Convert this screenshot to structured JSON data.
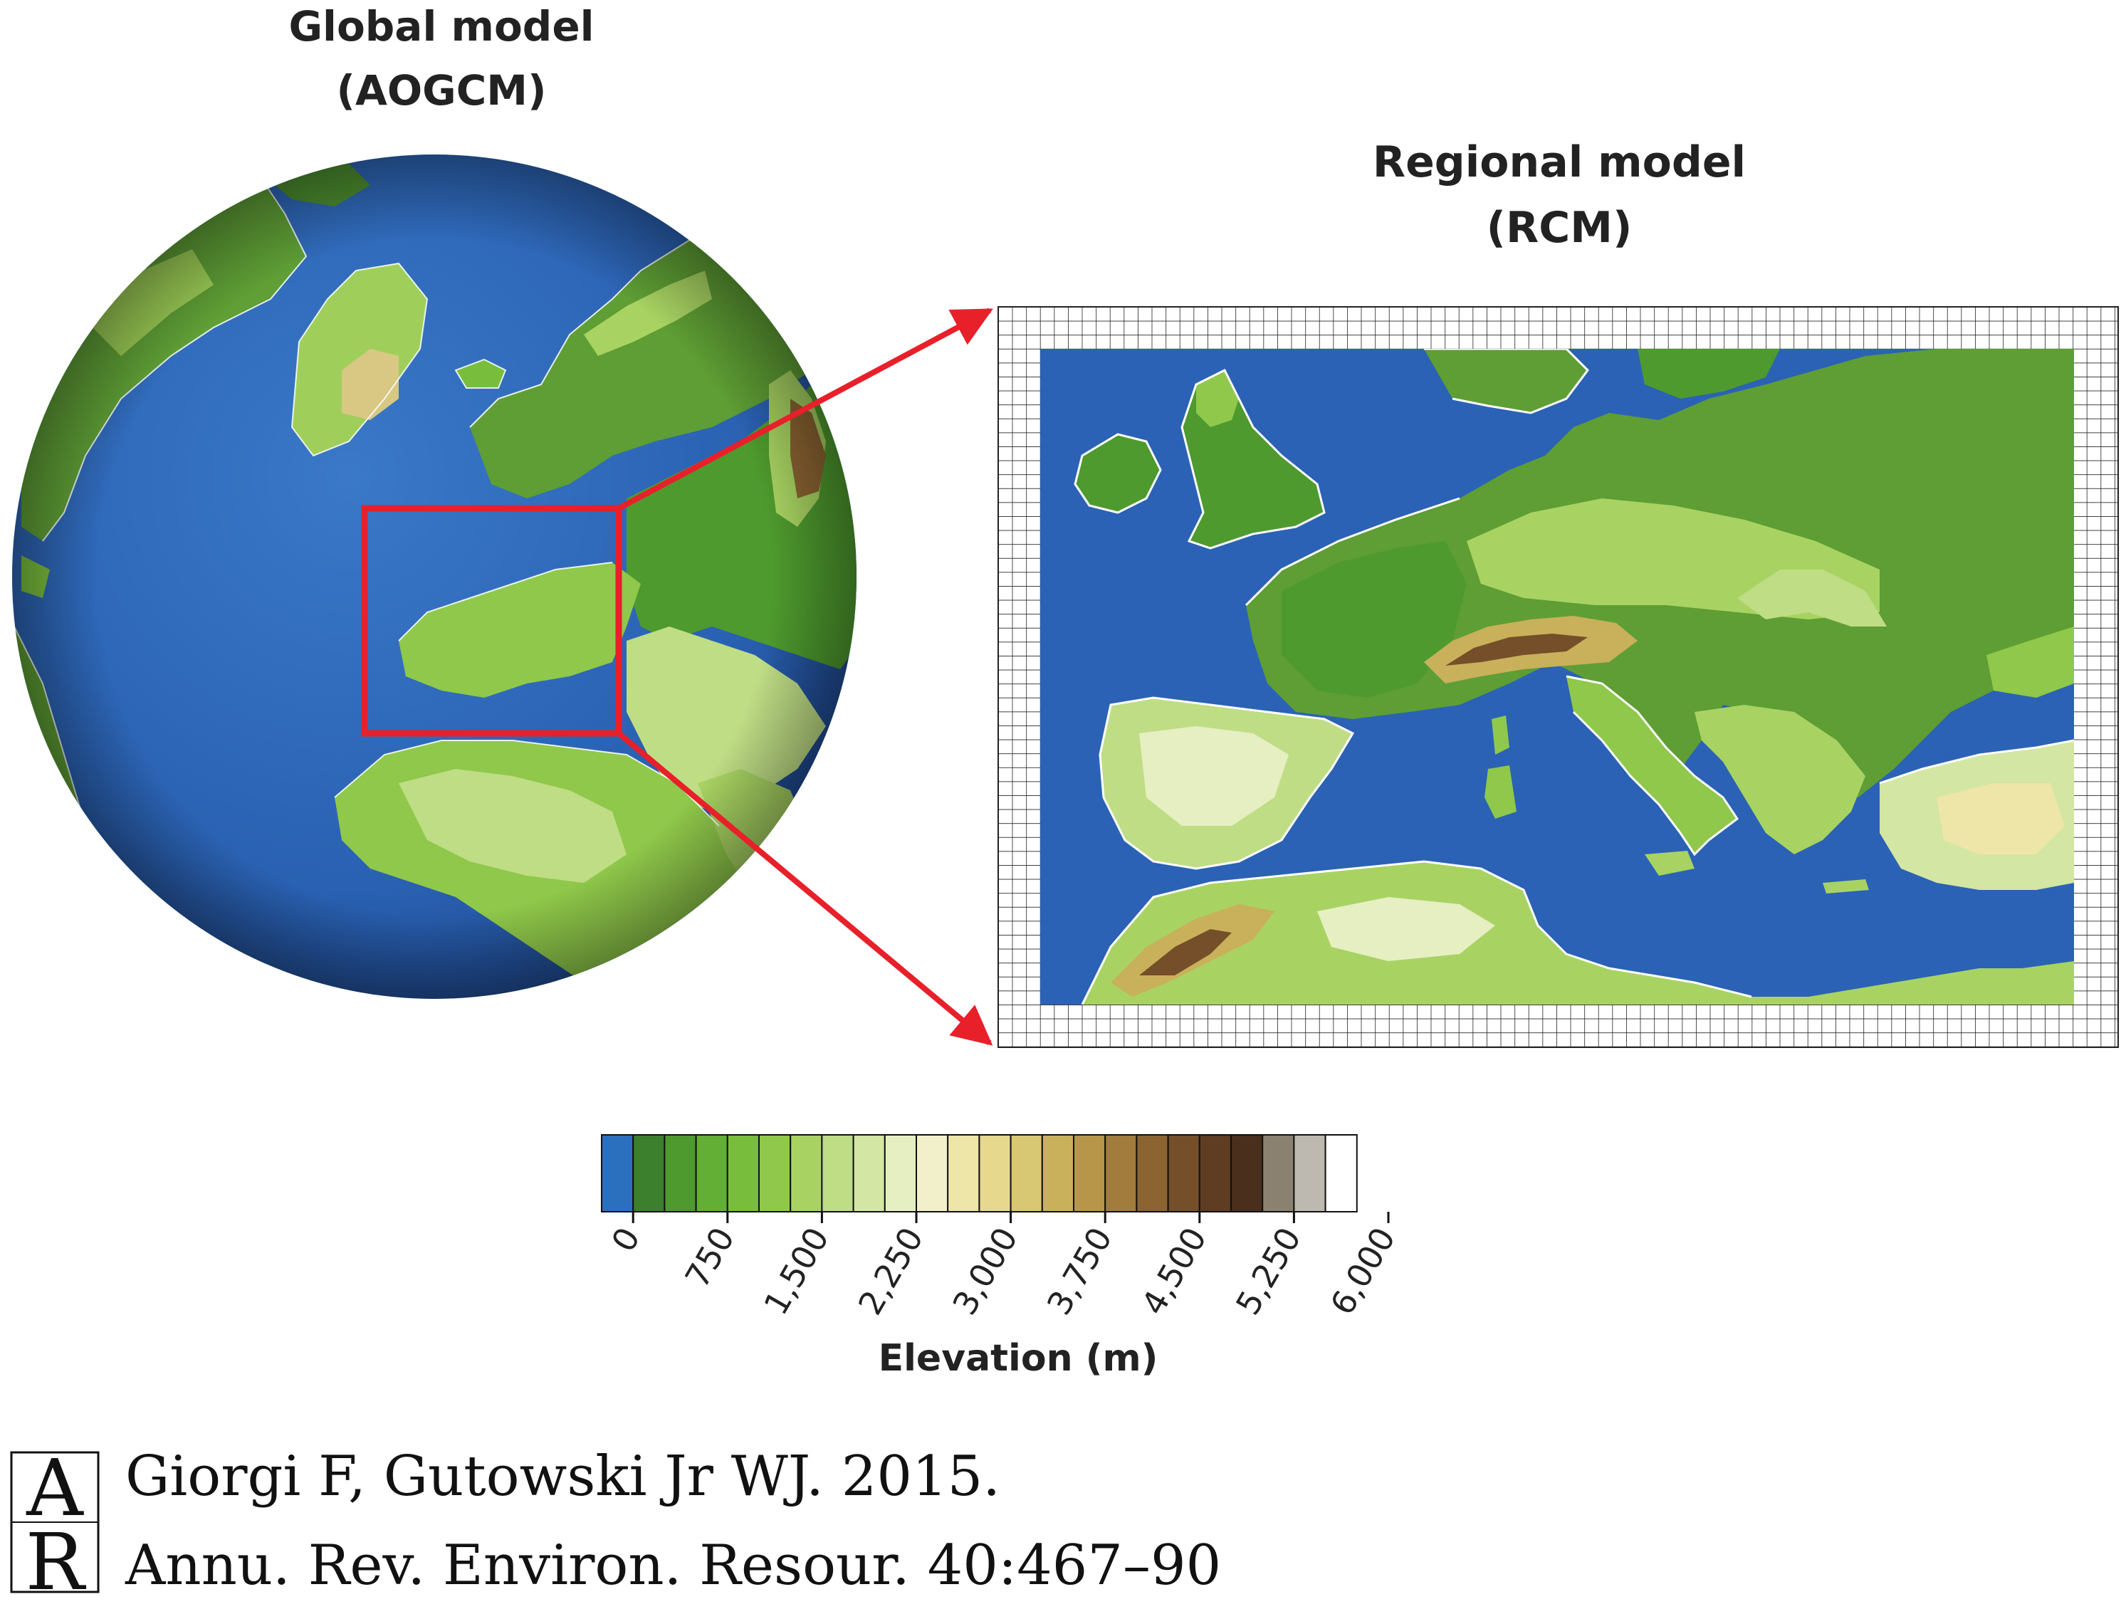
{
  "titles": {
    "global_line1": "Global model",
    "global_line2": "(AOGCM)",
    "regional_line1": "Regional model",
    "regional_line2": "(RCM)"
  },
  "colorbar": {
    "title": "Elevation (m)",
    "tick_labels": [
      "0",
      "750",
      "1,500",
      "2,250",
      "3,000",
      "3,750",
      "4,500",
      "5,250",
      "6,000"
    ],
    "colors": [
      "#2b6fbf",
      "#3c7f2c",
      "#4e9a2e",
      "#63ae35",
      "#79bd3d",
      "#8fc84a",
      "#a8d362",
      "#bfdd85",
      "#d3e6a3",
      "#e6efc2",
      "#f1f0cb",
      "#eee6a8",
      "#e6d98e",
      "#d9c873",
      "#c9b05b",
      "#b79649",
      "#a27c3c",
      "#8b6432",
      "#744f2a",
      "#5e3d22",
      "#4a2f1c",
      "#8a8170",
      "#bdb8b0",
      "#ffffff"
    ]
  },
  "citation": {
    "line1": "Giorgi F, Gutowski Jr WJ. 2015.",
    "line2": "Annu. Rev. Environ. Resour. 40:467–90",
    "logo_letters": "AR"
  },
  "colors": {
    "ocean": "#2b62b5",
    "highlight": "#e8202a",
    "grid": "#222222",
    "coast": "#ffffff"
  }
}
